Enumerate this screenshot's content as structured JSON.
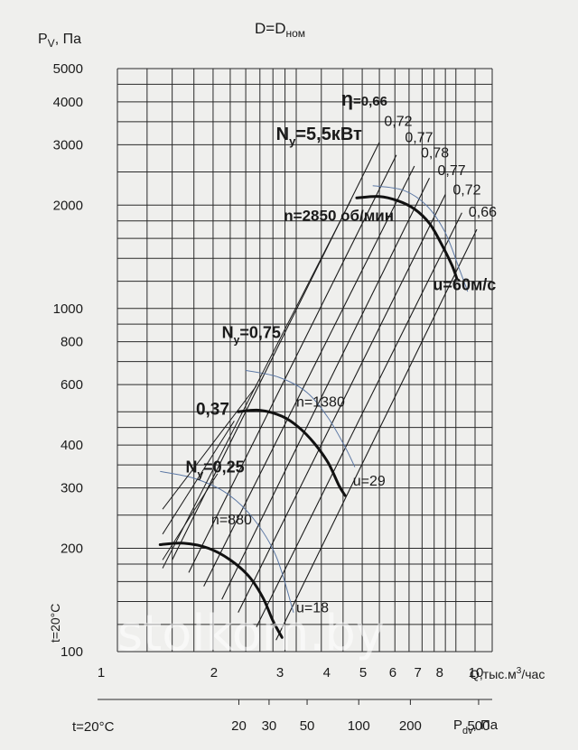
{
  "chart_data": {
    "type": "line",
    "title": "D=D",
    "title_sub": "ном",
    "ylabel_main": "P",
    "ylabel_sub": "V",
    "ylabel_unit": ", Па",
    "xlabel": "Q,тыс.м",
    "xlabel_sup": "3",
    "xlabel_tail": "/час",
    "side_label": "t=20°C",
    "pdv_label_left": "t=20°C",
    "pdv_label_right_main": "P",
    "pdv_label_right_sub": "dv",
    "pdv_label_right_unit": ", Па",
    "x_scale": "log",
    "y_scale": "log",
    "xlim": [
      1,
      10
    ],
    "ylim": [
      100,
      5000
    ],
    "x_ticks": [
      {
        "value": 1,
        "label": "1"
      },
      {
        "value": 2,
        "label": "2"
      },
      {
        "value": 3,
        "label": "3"
      },
      {
        "value": 4,
        "label": "4"
      },
      {
        "value": 5,
        "label": "5"
      },
      {
        "value": 6,
        "label": "6"
      },
      {
        "value": 7,
        "label": "7"
      },
      {
        "value": 8,
        "label": "8"
      },
      {
        "value": 10,
        "label": "10"
      }
    ],
    "x_grid": [
      1,
      1.2,
      1.4,
      1.6,
      1.8,
      2,
      2.2,
      2.4,
      2.6,
      2.8,
      3,
      3.5,
      4,
      4.5,
      5,
      5.5,
      6,
      6.5,
      7,
      7.5,
      8,
      9,
      10
    ],
    "y_ticks": [
      {
        "value": 5000,
        "label": "5000"
      },
      {
        "value": 4000,
        "label": "4000"
      },
      {
        "value": 3000,
        "label": "3000"
      },
      {
        "value": 2000,
        "label": "2000"
      },
      {
        "value": 1000,
        "label": "1000"
      },
      {
        "value": 800,
        "label": "800"
      },
      {
        "value": 600,
        "label": "600"
      },
      {
        "value": 400,
        "label": "400"
      },
      {
        "value": 300,
        "label": "300"
      },
      {
        "value": 200,
        "label": "200"
      },
      {
        "value": 100,
        "label": "100"
      }
    ],
    "y_grid": [
      100,
      120,
      140,
      160,
      180,
      200,
      250,
      300,
      350,
      400,
      450,
      500,
      600,
      700,
      800,
      900,
      1000,
      1200,
      1400,
      1600,
      1800,
      2000,
      2500,
      3000,
      3500,
      4000,
      4500,
      5000
    ],
    "pdv_ticks": [
      {
        "value": 20,
        "label": "20"
      },
      {
        "value": 30,
        "label": "30"
      },
      {
        "value": 50,
        "label": "50"
      },
      {
        "value": 100,
        "label": "100"
      },
      {
        "value": 200,
        "label": "200"
      },
      {
        "value": 500,
        "label": "500"
      }
    ],
    "pdv_axis_range": [
      3,
      600
    ],
    "pressure_curves": [
      {
        "label": "n=2850 об/мин",
        "points": [
          [
            4.35,
            2100
          ],
          [
            5.0,
            2120
          ],
          [
            5.6,
            2060
          ],
          [
            6.2,
            1950
          ],
          [
            6.8,
            1770
          ],
          [
            7.3,
            1550
          ],
          [
            7.8,
            1340
          ],
          [
            8.05,
            1220
          ]
        ]
      },
      {
        "label": "n=1380",
        "points": [
          [
            2.1,
            500
          ],
          [
            2.4,
            505
          ],
          [
            2.75,
            485
          ],
          [
            3.05,
            450
          ],
          [
            3.35,
            405
          ],
          [
            3.65,
            355
          ],
          [
            3.9,
            305
          ],
          [
            4.05,
            285
          ]
        ]
      },
      {
        "label": "n=880",
        "points": [
          [
            1.3,
            205
          ],
          [
            1.5,
            207
          ],
          [
            1.75,
            200
          ],
          [
            2.0,
            185
          ],
          [
            2.25,
            165
          ],
          [
            2.45,
            143
          ],
          [
            2.6,
            123
          ],
          [
            2.75,
            110
          ]
        ]
      }
    ],
    "power_lines": [
      {
        "label": "5,5кВт",
        "points": [
          [
            1.32,
            175
          ],
          [
            4.2,
            2070
          ]
        ]
      },
      {
        "label": "0,75",
        "points": [
          [
            1.32,
            260
          ],
          [
            2.35,
            595
          ]
        ]
      },
      {
        "label": "0,37",
        "points": [
          [
            1.32,
            220
          ],
          [
            2.05,
            470
          ]
        ]
      },
      {
        "label": "0,25",
        "points": [
          [
            1.32,
            185
          ],
          [
            1.85,
            330
          ]
        ]
      }
    ],
    "efficiency_lines": [
      {
        "label": "0,66",
        "points": [
          [
            1.4,
            185
          ],
          [
            5.0,
            3050
          ]
        ]
      },
      {
        "label": "0,72",
        "points": [
          [
            1.55,
            170
          ],
          [
            5.55,
            2800
          ]
        ]
      },
      {
        "label": "0,77",
        "points": [
          [
            1.7,
            155
          ],
          [
            6.2,
            2600
          ]
        ]
      },
      {
        "label": "0,78",
        "points": [
          [
            1.9,
            142
          ],
          [
            6.8,
            2400
          ]
        ]
      },
      {
        "label": "0,77",
        "points": [
          [
            2.1,
            130
          ],
          [
            7.5,
            2150
          ]
        ]
      },
      {
        "label": "0,72",
        "points": [
          [
            2.35,
            118
          ],
          [
            8.3,
            1900
          ]
        ]
      },
      {
        "label": "0,66",
        "points": [
          [
            2.65,
            108
          ],
          [
            9.1,
            1700
          ]
        ]
      }
    ],
    "velocity_curves": [
      {
        "label": "u=60м/с",
        "points": [
          [
            4.8,
            2280
          ],
          [
            5.8,
            2210
          ],
          [
            6.7,
            1990
          ],
          [
            7.5,
            1660
          ],
          [
            8.2,
            1290
          ],
          [
            8.6,
            1120
          ]
        ]
      },
      {
        "label": "u=29",
        "points": [
          [
            2.2,
            660
          ],
          [
            2.7,
            630
          ],
          [
            3.2,
            570
          ],
          [
            3.65,
            480
          ],
          [
            4.05,
            395
          ],
          [
            4.3,
            345
          ]
        ]
      },
      {
        "label": "u=18",
        "points": [
          [
            1.3,
            335
          ],
          [
            1.6,
            320
          ],
          [
            1.95,
            290
          ],
          [
            2.3,
            245
          ],
          [
            2.65,
            190
          ],
          [
            2.95,
            130
          ]
        ]
      }
    ],
    "annotations": [
      {
        "id": "eta",
        "main": "η",
        "tail": "=0,66",
        "x": 3.95,
        "y": 3900
      },
      {
        "id": "eta-072a",
        "main": "0,72",
        "x": 5.15,
        "y": 3400
      },
      {
        "id": "eta-077a",
        "main": "0,77",
        "x": 5.85,
        "y": 3050
      },
      {
        "id": "eta-078",
        "main": "0,78",
        "x": 6.45,
        "y": 2750
      },
      {
        "id": "eta-077b",
        "main": "0,77",
        "x": 7.15,
        "y": 2450
      },
      {
        "id": "eta-072b",
        "main": "0,72",
        "x": 7.85,
        "y": 2150
      },
      {
        "id": "eta-066b",
        "main": "0,66",
        "x": 8.65,
        "y": 1850
      },
      {
        "id": "ny-55",
        "main": "N",
        "sub": "y",
        "tail": "=5,5кВт",
        "x": 2.65,
        "y": 3100
      },
      {
        "id": "n-2850",
        "main": "n=2850 об/мин",
        "x": 2.78,
        "y": 1800
      },
      {
        "id": "u-60",
        "main": "u=60м/с",
        "x": 6.95,
        "y": 1130
      },
      {
        "id": "ny-075",
        "main": "N",
        "sub": "y",
        "tail": "=0,75",
        "x": 1.9,
        "y": 820
      },
      {
        "id": "n-1380",
        "main": "n=1380",
        "x": 3.0,
        "y": 518
      },
      {
        "id": "n037",
        "main": "0,37",
        "x": 1.62,
        "y": 490
      },
      {
        "id": "ny-025",
        "main": "N",
        "sub": "y",
        "tail": "=0,25",
        "x": 1.52,
        "y": 333
      },
      {
        "id": "u-29",
        "main": "u=29",
        "x": 4.25,
        "y": 305
      },
      {
        "id": "n-880",
        "main": "n=880",
        "x": 1.78,
        "y": 235
      },
      {
        "id": "u-18",
        "main": "u=18",
        "x": 3.0,
        "y": 130
      }
    ],
    "watermark": "stolkom.by",
    "colors": {
      "background": "#efefed",
      "grid": "#2a2a2a",
      "pressure": "#111111",
      "power": "#1c1c1c",
      "efficiency": "#6b86ad",
      "velocity": "#5d79a5"
    }
  }
}
